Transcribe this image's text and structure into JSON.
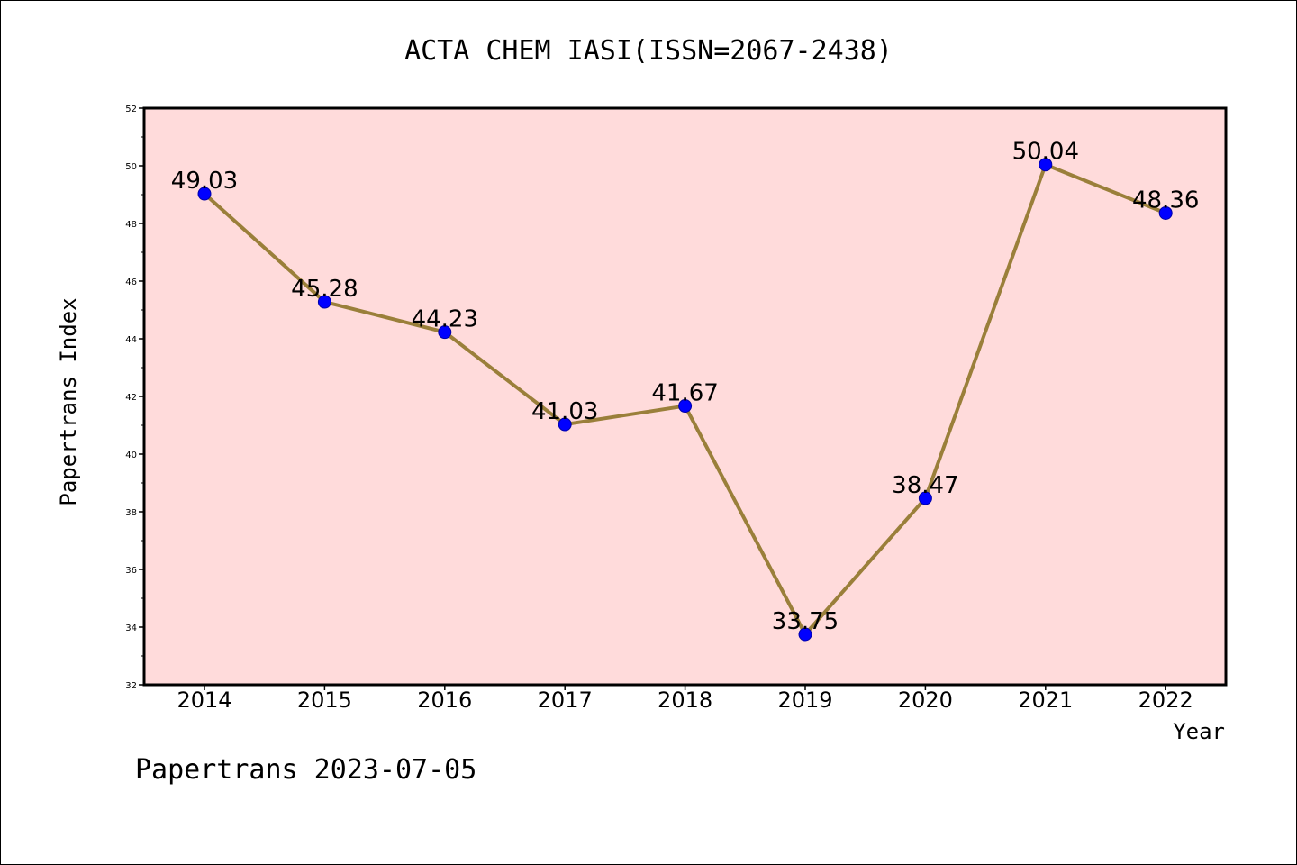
{
  "chart_data": {
    "type": "line",
    "title": "ACTA CHEM IASI(ISSN=2067-2438)",
    "xlabel": "Year",
    "ylabel": "Papertrans Index",
    "categories": [
      "2014",
      "2015",
      "2016",
      "2017",
      "2018",
      "2019",
      "2020",
      "2021",
      "2022"
    ],
    "series": [
      {
        "values": [
          49.03,
          45.28,
          44.23,
          41.03,
          41.67,
          33.75,
          38.47,
          50.04,
          48.36
        ],
        "labels": [
          "49.03",
          "45.28",
          "44.23",
          "41.03",
          "41.67",
          "33.75",
          "38.47",
          "50.04",
          "48.36"
        ]
      }
    ],
    "ylim": [
      32,
      52
    ],
    "yticks": [
      "32",
      "34",
      "36",
      "38",
      "40",
      "42",
      "44",
      "46",
      "48",
      "50",
      "52"
    ],
    "grid": false,
    "colors": {
      "plot_background": "#ffdbdb",
      "line": "#9a7f3a",
      "marker": "#0000ff"
    }
  },
  "footer": {
    "text": "Papertrans 2023-07-05"
  }
}
